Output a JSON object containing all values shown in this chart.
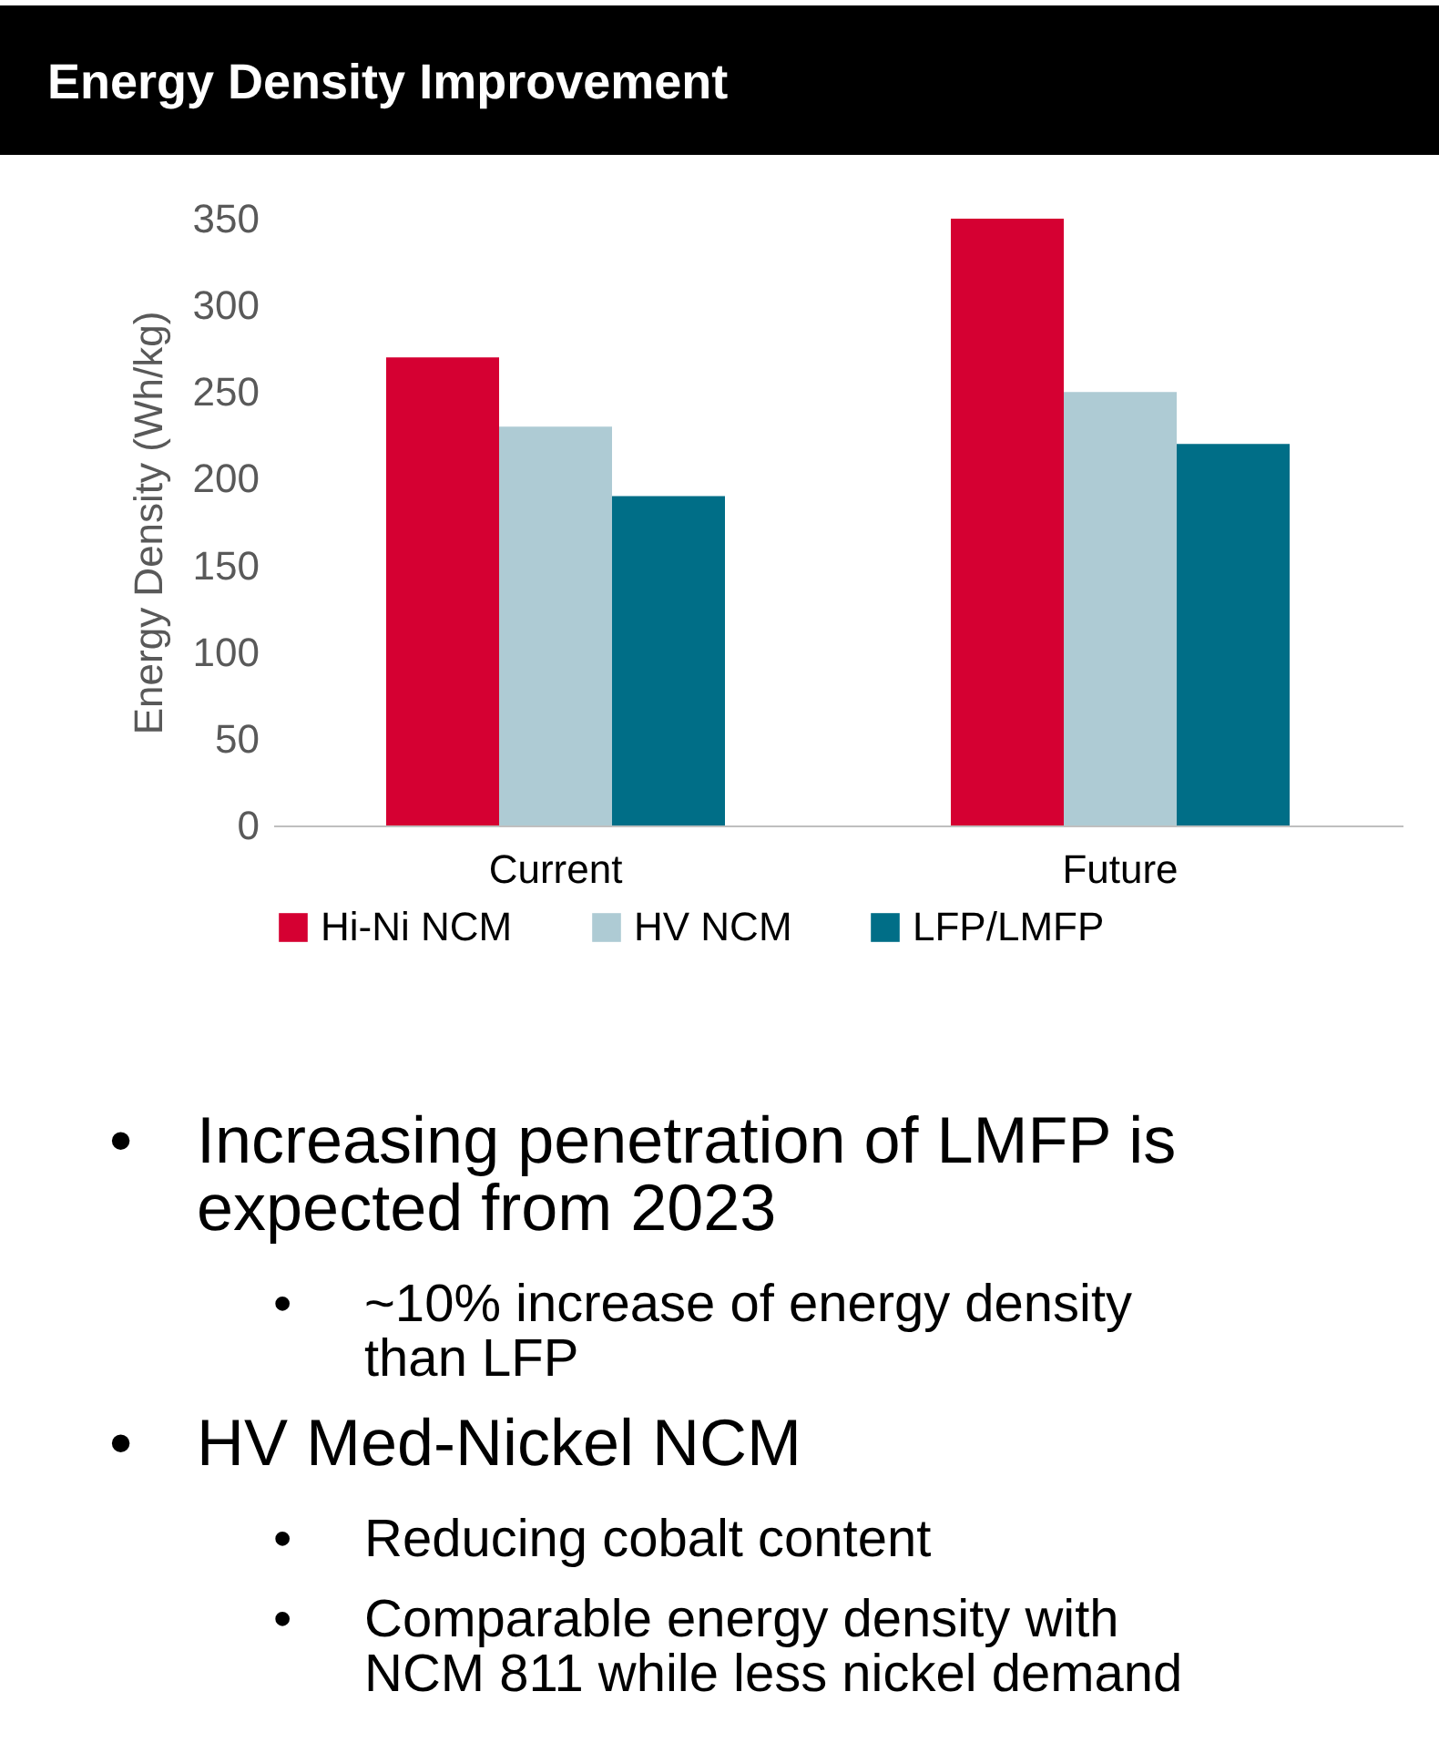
{
  "chart_data": {
    "type": "bar",
    "title": "Energy Density Improvement",
    "ylabel": "Energy Density (Wh/kg)",
    "categories": [
      "Current",
      "Future"
    ],
    "series": [
      {
        "name": "Hi-Ni NCM",
        "color": "#d50032",
        "values": [
          270,
          350
        ]
      },
      {
        "name": "HV NCM",
        "color": "#aecbd4",
        "values": [
          230,
          250
        ]
      },
      {
        "name": "LFP/LMFP",
        "color": "#006e87",
        "values": [
          190,
          220
        ]
      }
    ],
    "ylim": [
      0,
      350
    ],
    "yticks": [
      0,
      50,
      100,
      150,
      200,
      250,
      300,
      350
    ],
    "grid": false,
    "legend": "bottom",
    "annotations": [
      "• Increasing penetration of LMFP is expected from 2023",
      "• ~10% increase of energy density than LFP",
      "• HV Med-Nickel NCM",
      "• Reducing cobalt content",
      "• Comparable energy density with NCM 811 while less nickel demand"
    ]
  }
}
